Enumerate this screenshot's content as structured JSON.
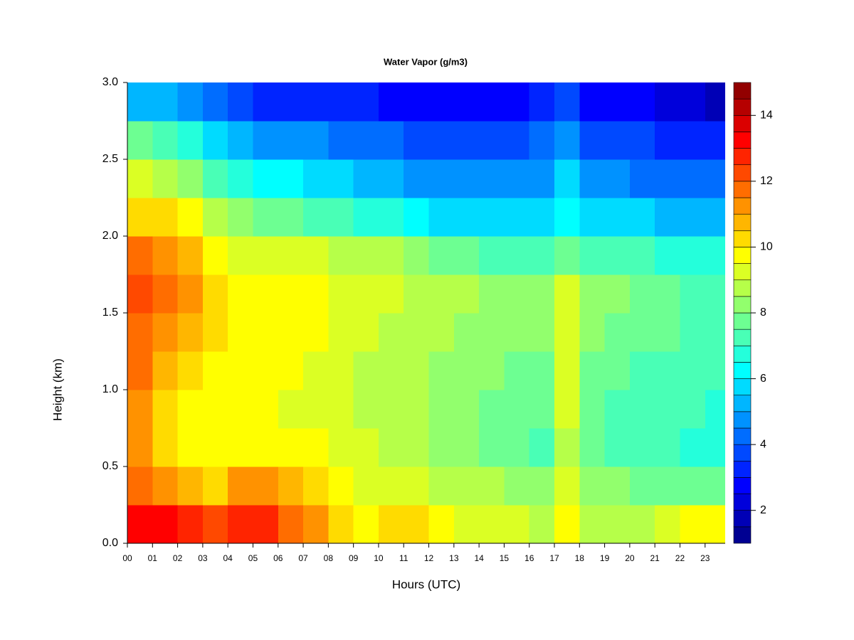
{
  "chart_data": {
    "type": "heatmap",
    "title": "Water Vapor (g/m3)",
    "xlabel": "Hours (UTC)",
    "ylabel": "Height (km)",
    "colormap": "jet",
    "xlim": [
      0,
      23.8
    ],
    "xticks": [
      {
        "value": 0,
        "label": "00"
      },
      {
        "value": 1,
        "label": "01"
      },
      {
        "value": 2,
        "label": "02"
      },
      {
        "value": 3,
        "label": "03"
      },
      {
        "value": 4,
        "label": "04"
      },
      {
        "value": 5,
        "label": "05"
      },
      {
        "value": 6,
        "label": "06"
      },
      {
        "value": 7,
        "label": "07"
      },
      {
        "value": 8,
        "label": "08"
      },
      {
        "value": 9,
        "label": "09"
      },
      10,
      11,
      12,
      13,
      14,
      15,
      16,
      17,
      18,
      19,
      20,
      21,
      22,
      23
    ],
    "ylim": [
      0,
      3
    ],
    "yticks": [
      {
        "value": 0,
        "label": "0.0"
      },
      0.5,
      {
        "value": 1,
        "label": "1.0"
      },
      1.5,
      {
        "value": 2,
        "label": "2.0"
      },
      2.5,
      {
        "value": 3,
        "label": "3.0"
      }
    ],
    "zlim": [
      1,
      15
    ],
    "zticks": [
      2,
      4,
      6,
      8,
      10,
      12,
      14
    ],
    "levels": [
      1,
      1.5,
      2,
      2.5,
      3,
      3.5,
      4,
      4.5,
      5,
      5.5,
      6,
      6.5,
      7,
      7.5,
      8,
      8.5,
      9,
      9.5,
      10,
      10.5,
      11,
      11.5,
      12,
      12.5,
      13,
      13.5,
      14,
      14.5,
      15
    ],
    "x": [
      0.5,
      1.5,
      2.5,
      3.5,
      4.5,
      5.5,
      6.5,
      7.5,
      8.5,
      9.5,
      10.5,
      11.5,
      12.5,
      13.5,
      14.5,
      15.5,
      16.5,
      17.5,
      18.5,
      19.5,
      20.5,
      21.5,
      22.5,
      23.5
    ],
    "y": [
      0.125,
      0.375,
      0.625,
      0.875,
      1.125,
      1.375,
      1.625,
      1.875,
      2.125,
      2.375,
      2.625,
      2.875
    ],
    "z": [
      [
        13,
        13,
        12.5,
        12,
        12.5,
        12.5,
        11.5,
        11,
        10,
        9.5,
        10,
        10,
        9.5,
        9,
        9,
        9,
        8.5,
        9.5,
        8.5,
        8.5,
        8.5,
        9,
        9.5,
        9.5
      ],
      [
        11.5,
        11,
        10.5,
        10,
        11,
        11,
        10.5,
        10,
        9.5,
        9,
        9,
        9,
        8.5,
        8.5,
        8.5,
        8,
        8,
        9,
        8,
        8,
        7.5,
        7.5,
        7.5,
        7.5
      ],
      [
        11,
        10,
        9.5,
        9.5,
        9.5,
        9.5,
        9.5,
        9.5,
        9,
        9,
        8.5,
        8.5,
        8,
        8,
        7.5,
        7.5,
        7,
        8.5,
        7.5,
        7,
        7,
        7,
        6.5,
        6.5
      ],
      [
        11,
        10,
        9.5,
        9.5,
        9.5,
        9.5,
        9,
        9,
        9,
        8.5,
        8.5,
        8.5,
        8,
        8,
        7.5,
        7.5,
        7.5,
        9,
        7.5,
        7,
        7,
        7,
        7,
        6.5
      ],
      [
        11.5,
        10.5,
        10,
        9.5,
        9.5,
        9.5,
        9.5,
        9,
        9,
        8.5,
        8.5,
        8.5,
        8,
        8,
        8,
        7.5,
        7.5,
        9,
        7.5,
        7.5,
        7,
        7,
        7,
        7
      ],
      [
        11.5,
        11,
        10.5,
        10,
        9.5,
        9.5,
        9.5,
        9.5,
        9,
        9,
        8.5,
        8.5,
        8.5,
        8,
        8,
        8,
        8,
        9,
        8,
        7.5,
        7.5,
        7.5,
        7,
        7
      ],
      [
        12,
        11.5,
        11,
        10,
        9.5,
        9.5,
        9.5,
        9.5,
        9,
        9,
        9,
        8.5,
        8.5,
        8.5,
        8,
        8,
        8,
        9,
        8,
        8,
        7.5,
        7.5,
        7,
        7
      ],
      [
        11.5,
        11,
        10.5,
        9.5,
        9,
        9,
        9,
        9,
        8.5,
        8.5,
        8.5,
        8,
        7.5,
        7.5,
        7,
        7,
        7,
        7.5,
        7,
        7,
        7,
        6.5,
        6.5,
        6.5
      ],
      [
        10,
        10,
        9.5,
        8.5,
        8,
        7.5,
        7.5,
        7,
        7,
        6.5,
        6.5,
        6,
        5.5,
        5.5,
        5.5,
        5.5,
        5.5,
        6,
        5.5,
        5.5,
        5.5,
        5,
        5,
        5
      ],
      [
        9,
        8.5,
        8,
        7,
        6.5,
        6,
        6,
        5.5,
        5.5,
        5,
        5,
        4.5,
        4.5,
        4.5,
        4.5,
        4.5,
        4.5,
        5.5,
        4.5,
        4.5,
        4,
        4,
        4,
        4
      ],
      [
        7.5,
        7,
        6.5,
        5.5,
        5,
        4.5,
        4.5,
        4.5,
        4,
        4,
        4,
        3.5,
        3.5,
        3.5,
        3.5,
        3.5,
        4,
        4.5,
        3.5,
        3.5,
        3.5,
        3,
        3,
        3
      ],
      [
        5,
        5,
        4.5,
        4,
        3.5,
        3,
        3,
        3,
        3,
        3,
        2.5,
        2.5,
        2.5,
        2.5,
        2.5,
        2.5,
        3,
        3.5,
        2.5,
        2.5,
        2.5,
        2,
        2,
        1.5
      ]
    ]
  }
}
